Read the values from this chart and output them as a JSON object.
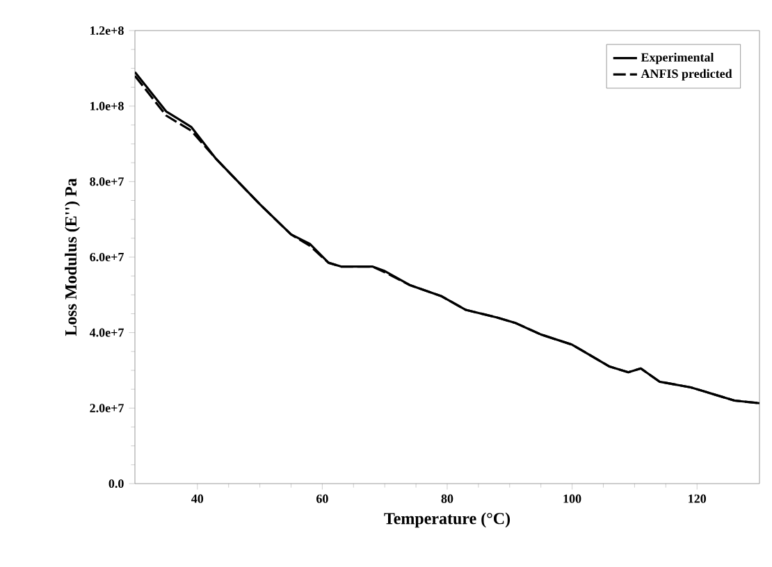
{
  "chart_data": {
    "type": "line",
    "xlabel": "Temperature (°C)",
    "ylabel": "Loss Modulus (E'') Pa",
    "xlim": [
      30,
      130
    ],
    "xticks": [
      40,
      60,
      80,
      100,
      120
    ],
    "ylim": [
      0,
      120000000
    ],
    "yticks": [
      {
        "value": 0,
        "label": "0.0"
      },
      {
        "value": 20000000,
        "label": "2.0e+7"
      },
      {
        "value": 40000000,
        "label": "4.0e+7"
      },
      {
        "value": 60000000,
        "label": "6.0e+7"
      },
      {
        "value": 80000000,
        "label": "8.0e+7"
      },
      {
        "value": 100000000,
        "label": "1.0e+8"
      },
      {
        "value": 120000000,
        "label": "1.2e+8"
      }
    ],
    "legend": "top right",
    "grid": false,
    "marker": "none",
    "x": [
      30,
      35,
      39,
      43,
      50,
      55,
      58,
      61,
      63,
      68,
      70,
      74,
      79,
      83,
      88,
      91,
      95,
      100,
      106,
      109,
      111,
      114,
      119,
      122,
      126,
      130
    ],
    "series": [
      {
        "name": "Experimental",
        "color": "#000000",
        "line_style": "solid",
        "values": [
          109000000,
          98600000,
          94500000,
          86000000,
          74000000,
          66000000,
          63500000,
          58500000,
          57500000,
          57500000,
          56300000,
          52600000,
          49700000,
          46000000,
          44000000,
          42500000,
          39500000,
          36800000,
          31000000,
          29500000,
          30500000,
          27000000,
          25500000,
          24000000,
          22000000,
          21300000
        ]
      },
      {
        "name": "ANFIS predicted",
        "color": "#000000",
        "line_style": "dashed",
        "values": [
          108000000,
          97500000,
          93500000,
          86000000,
          74000000,
          66000000,
          63000000,
          58500000,
          57500000,
          57500000,
          56000000,
          52600000,
          49700000,
          46000000,
          44000000,
          42500000,
          39500000,
          36800000,
          31000000,
          29500000,
          30500000,
          27000000,
          25500000,
          24000000,
          22000000,
          21300000
        ]
      }
    ]
  }
}
